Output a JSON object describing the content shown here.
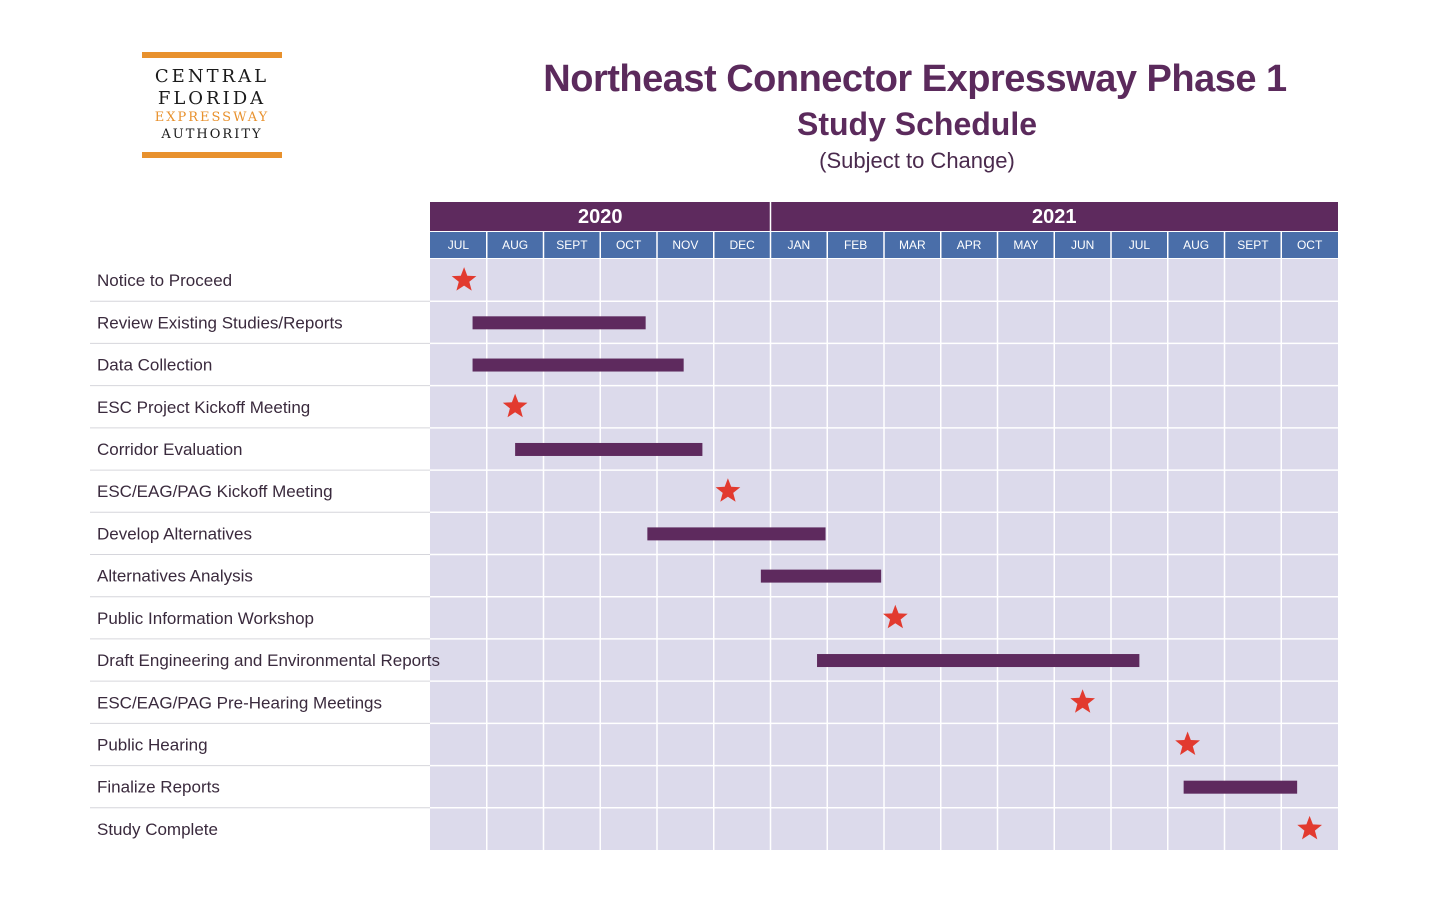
{
  "logo": {
    "line1": "CENTRAL",
    "line2": "FLORIDA",
    "line3": "EXPRESSWAY",
    "line4": "AUTHORITY"
  },
  "header": {
    "title": "Northeast Connector Expressway Phase 1",
    "subtitle": "Study Schedule",
    "note": "(Subject to Change)"
  },
  "colors": {
    "header_purple": "#5e2a5e",
    "month_blue": "#4a6ea9",
    "grid_bg": "#dcdaeb",
    "bar_purple": "#5e2a5e",
    "star_red": "#e23a2f",
    "logo_orange": "#e8912d"
  },
  "chart_data": {
    "type": "gantt",
    "years": [
      {
        "label": "2020",
        "months": [
          "JUL",
          "AUG",
          "SEPT",
          "OCT",
          "NOV",
          "DEC"
        ]
      },
      {
        "label": "2021",
        "months": [
          "JAN",
          "FEB",
          "MAR",
          "APR",
          "MAY",
          "JUN",
          "JUL",
          "AUG",
          "SEPT",
          "OCT"
        ]
      }
    ],
    "tasks": [
      {
        "label": "Notice to Proceed",
        "type": "milestone",
        "at": 0.6
      },
      {
        "label": "Review Existing Studies/Reports",
        "type": "bar",
        "start": 0.75,
        "end": 3.8
      },
      {
        "label": "Data Collection",
        "type": "bar",
        "start": 0.75,
        "end": 4.47
      },
      {
        "label": "ESC Project Kickoff Meeting",
        "type": "milestone",
        "at": 1.5
      },
      {
        "label": "Corridor Evaluation",
        "type": "bar",
        "start": 1.5,
        "end": 4.8
      },
      {
        "label": "ESC/EAG/PAG Kickoff Meeting",
        "type": "milestone",
        "at": 5.25
      },
      {
        "label": "Develop Alternatives",
        "type": "bar",
        "start": 3.83,
        "end": 6.97
      },
      {
        "label": "Alternatives Analysis",
        "type": "bar",
        "start": 5.83,
        "end": 7.95
      },
      {
        "label": "Public Information Workshop",
        "type": "milestone",
        "at": 8.2
      },
      {
        "label": "Draft Engineering and Environmental Reports",
        "type": "bar",
        "start": 6.82,
        "end": 12.5
      },
      {
        "label": "ESC/EAG/PAG Pre-Hearing Meetings",
        "type": "milestone",
        "at": 11.5
      },
      {
        "label": "Public Hearing",
        "type": "milestone",
        "at": 13.35
      },
      {
        "label": "Finalize Reports",
        "type": "bar",
        "start": 13.28,
        "end": 15.28
      },
      {
        "label": "Study Complete",
        "type": "milestone",
        "at": 15.5
      }
    ]
  }
}
